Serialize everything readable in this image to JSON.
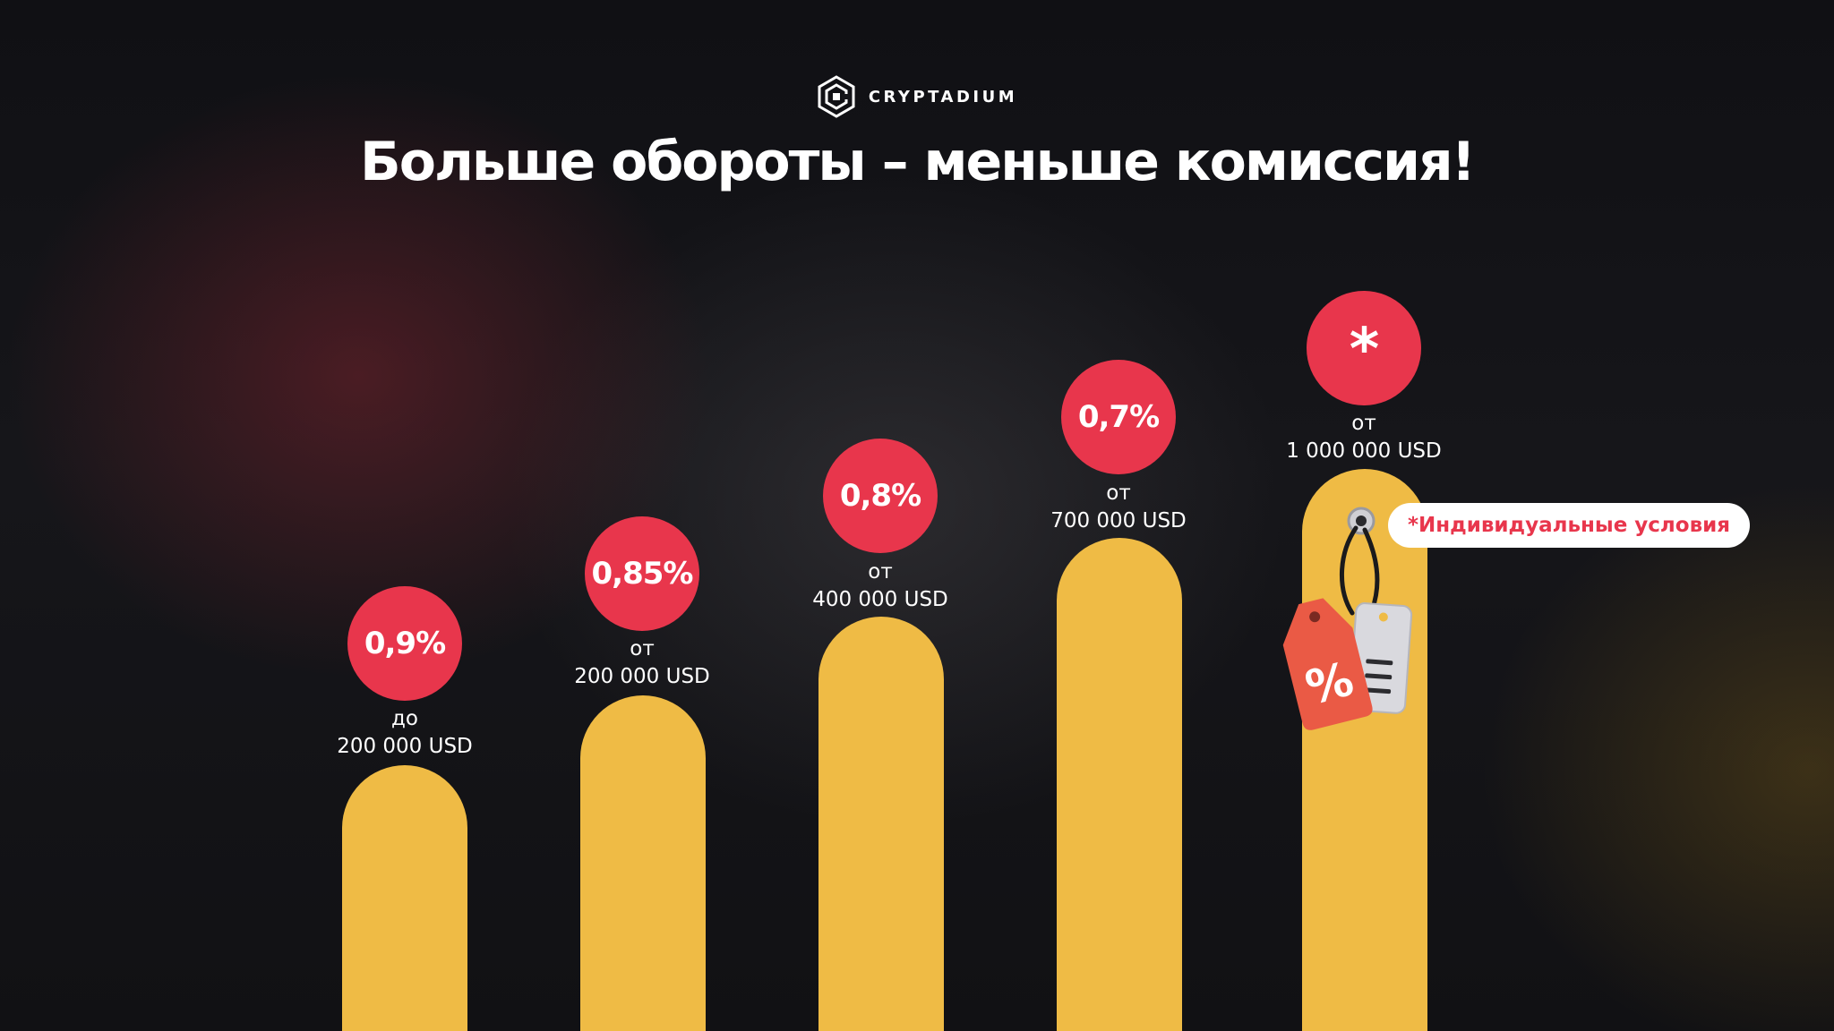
{
  "brand": {
    "name": "CRYPTADIUM",
    "logo_icon": "cryptadium-hexagon-logo-icon"
  },
  "headline": "Больше обороты – меньше комиссия!",
  "colors": {
    "bar": "#efbb45",
    "badge": "#e8364c",
    "pill_background": "#ffffff",
    "pill_text": "#e8364c",
    "background": "#111114"
  },
  "tiers": [
    {
      "rate": "0,9%",
      "prefix": "до",
      "amount": "200 000 USD"
    },
    {
      "rate": "0,85%",
      "prefix": "от",
      "amount": "200 000 USD"
    },
    {
      "rate": "0,8%",
      "prefix": "от",
      "amount": "400 000 USD"
    },
    {
      "rate": "0,7%",
      "prefix": "от",
      "amount": "700 000 USD"
    },
    {
      "rate": "*",
      "prefix": "от",
      "amount": "1 000 000 USD"
    }
  ],
  "note": "*Индивидуальные условия",
  "price_tag_icon": "price-tag-percent-icon",
  "price_tag_glyph": "%"
}
